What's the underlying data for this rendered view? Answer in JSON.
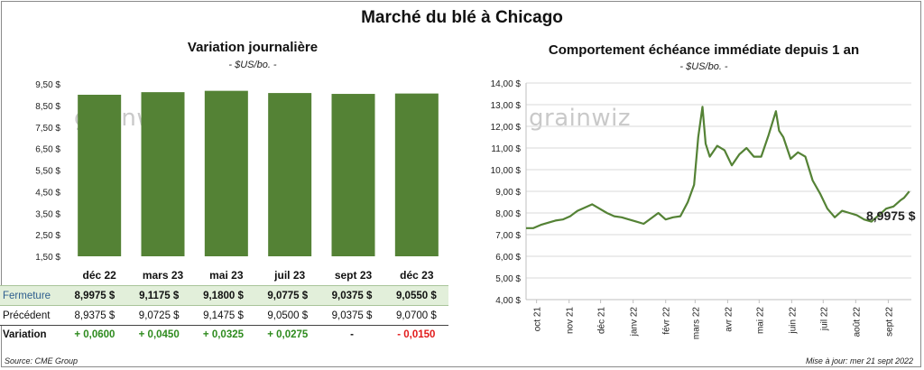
{
  "main_title": "Marché du blé à Chicago",
  "left": {
    "title": "Variation journalière",
    "subtitle": "- $US/bo. -",
    "watermark": "grainwiz"
  },
  "right": {
    "title": "Comportement échéance immédiate depuis 1 an",
    "subtitle": "- $US/bo. -",
    "watermark": "grainwiz",
    "last_value_label": "8,9975 $"
  },
  "colors": {
    "bar": "#548235",
    "line": "#548235",
    "close_row_bg": "#e2efda",
    "positive": "#2e8b1e",
    "negative": "#e21b1b"
  },
  "chart_data": [
    {
      "type": "bar",
      "categories": [
        "déc 22",
        "mars 23",
        "mai 23",
        "juil 23",
        "sept 23",
        "déc 23"
      ],
      "values": [
        8.9975,
        9.1175,
        9.18,
        9.0775,
        9.0375,
        9.055
      ],
      "ylim": [
        1.5,
        9.5
      ],
      "yticks": [
        "1,50 $",
        "2,50 $",
        "3,50 $",
        "4,50 $",
        "5,50 $",
        "6,50 $",
        "7,50 $",
        "8,50 $",
        "9,50 $"
      ],
      "grid": false,
      "table": {
        "rows": [
          {
            "label": "Fermeture",
            "cells": [
              "8,9975 $",
              "9,1175 $",
              "9,1800 $",
              "9,0775 $",
              "9,0375 $",
              "9,0550 $"
            ]
          },
          {
            "label": "Précédent",
            "cells": [
              "8,9375 $",
              "9,0725 $",
              "9,1475 $",
              "9,0500 $",
              "9,0375 $",
              "9,0700 $"
            ]
          },
          {
            "label": "Variation",
            "cells": [
              "+ 0,0600",
              "+ 0,0450",
              "+ 0,0325",
              "+ 0,0275",
              "-",
              "- 0,0150"
            ]
          }
        ]
      }
    },
    {
      "type": "line",
      "ylim": [
        4.0,
        14.0
      ],
      "yticks": [
        "4,00 $",
        "5,00 $",
        "6,00 $",
        "7,00 $",
        "8,00 $",
        "9,00 $",
        "10,00 $",
        "11,00 $",
        "12,00 $",
        "13,00 $",
        "14,00 $"
      ],
      "xticks": [
        "oct 21",
        "nov 21",
        "déc 21",
        "janv 22",
        "févr 22",
        "mars 22",
        "avr 22",
        "mai 22",
        "juin 22",
        "juil 22",
        "août 22",
        "sept 22"
      ],
      "grid": true,
      "series": [
        {
          "points": [
            [
              "2021-09-21",
              7.3
            ],
            [
              "2021-09-28",
              7.3
            ],
            [
              "2021-10-05",
              7.45
            ],
            [
              "2021-10-12",
              7.55
            ],
            [
              "2021-10-19",
              7.65
            ],
            [
              "2021-10-26",
              7.7
            ],
            [
              "2021-11-02",
              7.85
            ],
            [
              "2021-11-09",
              8.1
            ],
            [
              "2021-11-16",
              8.25
            ],
            [
              "2021-11-23",
              8.4
            ],
            [
              "2021-11-30",
              8.2
            ],
            [
              "2021-12-07",
              8.0
            ],
            [
              "2021-12-14",
              7.85
            ],
            [
              "2021-12-21",
              7.8
            ],
            [
              "2021-12-28",
              7.7
            ],
            [
              "2022-01-04",
              7.6
            ],
            [
              "2022-01-11",
              7.5
            ],
            [
              "2022-01-18",
              7.75
            ],
            [
              "2022-01-25",
              8.0
            ],
            [
              "2022-02-01",
              7.7
            ],
            [
              "2022-02-08",
              7.8
            ],
            [
              "2022-02-15",
              7.85
            ],
            [
              "2022-02-22",
              8.5
            ],
            [
              "2022-02-28",
              9.3
            ],
            [
              "2022-03-04",
              11.5
            ],
            [
              "2022-03-08",
              12.9
            ],
            [
              "2022-03-11",
              11.2
            ],
            [
              "2022-03-15",
              10.6
            ],
            [
              "2022-03-22",
              11.1
            ],
            [
              "2022-03-29",
              10.9
            ],
            [
              "2022-04-05",
              10.2
            ],
            [
              "2022-04-12",
              10.7
            ],
            [
              "2022-04-19",
              11.0
            ],
            [
              "2022-04-26",
              10.6
            ],
            [
              "2022-05-03",
              10.6
            ],
            [
              "2022-05-10",
              11.6
            ],
            [
              "2022-05-17",
              12.7
            ],
            [
              "2022-05-20",
              11.8
            ],
            [
              "2022-05-24",
              11.5
            ],
            [
              "2022-05-31",
              10.5
            ],
            [
              "2022-06-07",
              10.8
            ],
            [
              "2022-06-14",
              10.6
            ],
            [
              "2022-06-21",
              9.5
            ],
            [
              "2022-06-28",
              8.9
            ],
            [
              "2022-07-05",
              8.2
            ],
            [
              "2022-07-12",
              7.8
            ],
            [
              "2022-07-19",
              8.1
            ],
            [
              "2022-07-26",
              8.0
            ],
            [
              "2022-08-02",
              7.9
            ],
            [
              "2022-08-09",
              7.7
            ],
            [
              "2022-08-16",
              7.6
            ],
            [
              "2022-08-23",
              7.9
            ],
            [
              "2022-08-30",
              8.2
            ],
            [
              "2022-09-06",
              8.3
            ],
            [
              "2022-09-13",
              8.6
            ],
            [
              "2022-09-16",
              8.7
            ],
            [
              "2022-09-21",
              8.9975
            ]
          ]
        }
      ]
    }
  ],
  "footer": {
    "source": "Source: CME Group",
    "updated": "Mise à jour: mer 21 sept 2022"
  }
}
